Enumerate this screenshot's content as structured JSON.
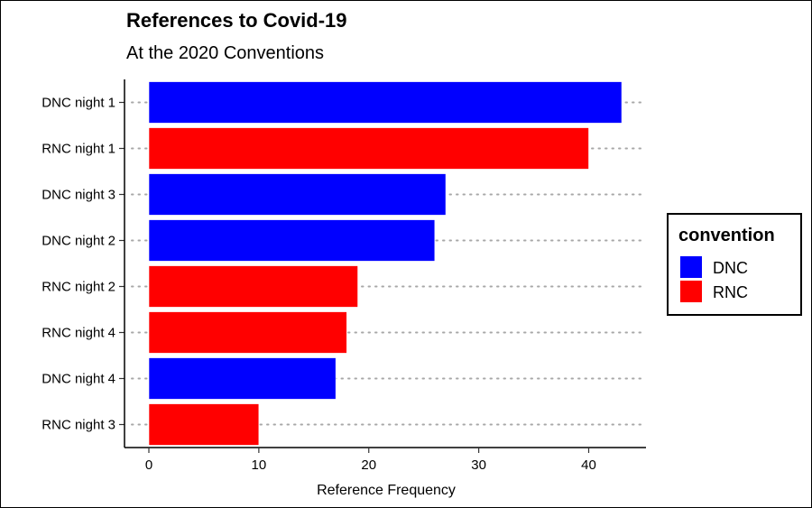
{
  "chart_data": {
    "type": "bar",
    "orientation": "horizontal",
    "title": "References to Covid-19",
    "subtitle": "At the 2020 Conventions",
    "xlabel": "Reference Frequency",
    "ylabel": "",
    "xlim": [
      0,
      45
    ],
    "xticks": [
      0,
      10,
      20,
      30,
      40
    ],
    "grid": "dotted horizontal lines at each category",
    "categories": [
      "DNC night 1",
      "RNC night 1",
      "DNC night 3",
      "DNC night 2",
      "RNC night 2",
      "RNC night 4",
      "DNC night 4",
      "RNC night 3"
    ],
    "values": [
      43,
      40,
      27,
      26,
      19,
      18,
      17,
      10
    ],
    "groups": [
      "DNC",
      "RNC",
      "DNC",
      "DNC",
      "RNC",
      "RNC",
      "DNC",
      "RNC"
    ],
    "colors": {
      "DNC": "#0000ff",
      "RNC": "#ff0000"
    },
    "legend": {
      "title": "convention",
      "position": "right",
      "entries": [
        "DNC",
        "RNC"
      ]
    }
  }
}
